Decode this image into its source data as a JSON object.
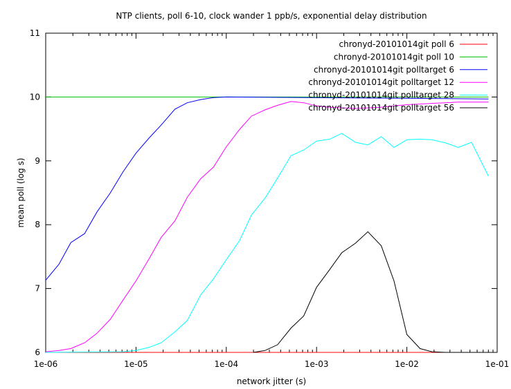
{
  "chart_data": {
    "type": "line",
    "title": "NTP clients, poll 6-10, clock wander 1 ppb/s, exponential delay distribution",
    "xlabel": "network jitter (s)",
    "ylabel": "mean poll (log s)",
    "xscale": "log",
    "xlim": [
      1e-06,
      0.1
    ],
    "ylim": [
      6,
      11
    ],
    "xticks": [
      {
        "v": 1e-06,
        "label": "1e-06"
      },
      {
        "v": 1e-05,
        "label": "1e-05"
      },
      {
        "v": 0.0001,
        "label": "1e-04"
      },
      {
        "v": 0.001,
        "label": "1e-03"
      },
      {
        "v": 0.01,
        "label": "1e-02"
      },
      {
        "v": 0.1,
        "label": "1e-01"
      }
    ],
    "yticks": [
      {
        "v": 6,
        "label": "6"
      },
      {
        "v": 7,
        "label": "7"
      },
      {
        "v": 8,
        "label": "8"
      },
      {
        "v": 9,
        "label": "9"
      },
      {
        "v": 10,
        "label": "10"
      },
      {
        "v": 11,
        "label": "11"
      }
    ],
    "legend_position": "top-right",
    "series": [
      {
        "name": "chronyd-20101014git poll 6",
        "color": "#ff0000",
        "x": [
          1e-06,
          0.08
        ],
        "y": [
          6.0,
          6.0
        ]
      },
      {
        "name": "chronyd-20101014git poll 10",
        "color": "#00c000",
        "x": [
          1e-06,
          0.08
        ],
        "y": [
          10.0,
          10.0
        ]
      },
      {
        "name": "chronyd-20101014git polltarget 6",
        "color": "#0000ff",
        "x": [
          1e-06,
          1.4e-06,
          1.9e-06,
          2.7e-06,
          3.7e-06,
          5.2e-06,
          7.2e-06,
          1e-05,
          1.4e-05,
          1.9e-05,
          2.7e-05,
          3.7e-05,
          5.2e-05,
          7.2e-05,
          0.0001,
          0.08
        ],
        "y": [
          7.13,
          7.38,
          7.72,
          7.86,
          8.2,
          8.5,
          8.83,
          9.12,
          9.36,
          9.56,
          9.81,
          9.91,
          9.96,
          9.99,
          10.0,
          9.97
        ]
      },
      {
        "name": "chronyd-20101014git polltarget 12",
        "color": "#ff00ff",
        "x": [
          1e-06,
          1.4e-06,
          1.9e-06,
          2.7e-06,
          3.7e-06,
          5.2e-06,
          7.2e-06,
          1e-05,
          1.4e-05,
          1.9e-05,
          2.7e-05,
          3.7e-05,
          5.2e-05,
          7.2e-05,
          0.0001,
          0.00014,
          0.00019,
          0.00027,
          0.00037,
          0.00052,
          0.00072,
          0.001,
          0.0014,
          0.0019,
          0.0027,
          0.0037,
          0.0052,
          0.0072,
          0.01,
          0.014,
          0.019,
          0.027,
          0.037,
          0.052,
          0.08
        ],
        "y": [
          6.01,
          6.03,
          6.06,
          6.15,
          6.3,
          6.52,
          6.82,
          7.12,
          7.47,
          7.8,
          8.06,
          8.43,
          8.72,
          8.9,
          9.22,
          9.49,
          9.7,
          9.8,
          9.87,
          9.93,
          9.91,
          9.86,
          9.84,
          9.83,
          9.82,
          9.83,
          9.84,
          9.86,
          9.88,
          9.89,
          9.9,
          9.91,
          9.92,
          9.92,
          9.92
        ]
      },
      {
        "name": "chronyd-20101014git polltarget 28",
        "color": "#00ffff",
        "x": [
          1e-06,
          7.2e-06,
          1e-05,
          1.4e-05,
          1.9e-05,
          2.7e-05,
          3.7e-05,
          5.2e-05,
          7.2e-05,
          0.0001,
          0.00014,
          0.00019,
          0.00027,
          0.00037,
          0.00052,
          0.00072,
          0.001,
          0.0014,
          0.0019,
          0.0027,
          0.0037,
          0.0052,
          0.0072,
          0.01,
          0.014,
          0.019,
          0.027,
          0.037,
          0.052,
          0.08
        ],
        "y": [
          6.0,
          6.01,
          6.03,
          6.08,
          6.15,
          6.32,
          6.5,
          6.9,
          7.15,
          7.45,
          7.75,
          8.15,
          8.42,
          8.73,
          9.08,
          9.17,
          9.31,
          9.34,
          9.43,
          9.29,
          9.25,
          9.38,
          9.21,
          9.33,
          9.34,
          9.33,
          9.28,
          9.21,
          9.29,
          8.76
        ]
      },
      {
        "name": "chronyd-20101014git polltarget 56",
        "color": "#000000",
        "x": [
          0.0002,
          0.00027,
          0.00037,
          0.00052,
          0.00072,
          0.001,
          0.0014,
          0.0019,
          0.0027,
          0.0037,
          0.0052,
          0.0072,
          0.01,
          0.014,
          0.019,
          0.027,
          0.037,
          0.052,
          0.08
        ],
        "y": [
          6.0,
          6.03,
          6.12,
          6.38,
          6.57,
          7.02,
          7.3,
          7.56,
          7.71,
          7.89,
          7.67,
          7.12,
          6.28,
          6.06,
          6.01,
          6.0,
          6.0,
          6.0,
          6.0
        ]
      }
    ]
  }
}
